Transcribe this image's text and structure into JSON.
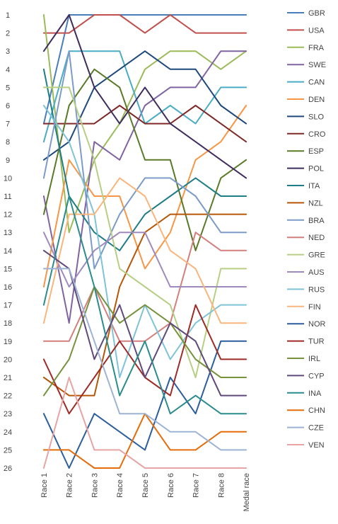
{
  "chart_data": {
    "type": "line",
    "title": "",
    "xlabel": "",
    "ylabel": "",
    "y_reversed": true,
    "ylim": [
      1,
      26
    ],
    "grid": false,
    "legend_position": "right",
    "categories": [
      "Race 1",
      "Race 2",
      "Race 3",
      "Race 4",
      "Race 5",
      "Race 6",
      "Race 7",
      "Race 8",
      "Medal race"
    ],
    "y_ticks": [
      1,
      2,
      3,
      4,
      5,
      6,
      7,
      8,
      9,
      10,
      11,
      12,
      13,
      14,
      15,
      16,
      17,
      18,
      19,
      20,
      21,
      22,
      23,
      24,
      25,
      26
    ],
    "series": [
      {
        "name": "GBR",
        "color": "#4a7ebb",
        "values": [
          7,
          1,
          1,
          1,
          1,
          1,
          1,
          1,
          1
        ]
      },
      {
        "name": "USA",
        "color": "#c0504d",
        "values": [
          2,
          2,
          1,
          1,
          2,
          1,
          2,
          2,
          2
        ]
      },
      {
        "name": "FRA",
        "color": "#9bbb59",
        "values": [
          1,
          13,
          9,
          7,
          4,
          3,
          3,
          4,
          3
        ]
      },
      {
        "name": "SWE",
        "color": "#8064a2",
        "values": [
          11,
          18,
          8,
          9,
          6,
          5,
          5,
          3,
          3
        ]
      },
      {
        "name": "CAN",
        "color": "#4bacc6",
        "values": [
          8,
          3,
          3,
          3,
          7,
          6,
          7,
          5,
          5
        ]
      },
      {
        "name": "DEN",
        "color": "#f79646",
        "values": [
          16,
          9,
          11,
          11,
          15,
          13,
          9,
          8,
          6
        ]
      },
      {
        "name": "SLO",
        "color": "#1f497d",
        "values": [
          9,
          8,
          5,
          4,
          3,
          4,
          4,
          6,
          7
        ]
      },
      {
        "name": "CRO",
        "color": "#7f2a27",
        "values": [
          7,
          7,
          7,
          6,
          7,
          7,
          6,
          7,
          8
        ]
      },
      {
        "name": "ESP",
        "color": "#5b7a28",
        "values": [
          12,
          6,
          4,
          5,
          9,
          9,
          14,
          10,
          9
        ]
      },
      {
        "name": "POL",
        "color": "#3f2d5e",
        "values": [
          3,
          1,
          5,
          7,
          5,
          7,
          8,
          9,
          10
        ]
      },
      {
        "name": "ITA",
        "color": "#1f7d86",
        "values": [
          4,
          11,
          13,
          14,
          12,
          11,
          10,
          11,
          11
        ]
      },
      {
        "name": "NZL",
        "color": "#b65708",
        "values": [
          21,
          22,
          22,
          16,
          13,
          12,
          12,
          12,
          12
        ]
      },
      {
        "name": "BRA",
        "color": "#7d9bc8",
        "values": [
          10,
          3,
          15,
          12,
          10,
          10,
          11,
          13,
          13
        ]
      },
      {
        "name": "NED",
        "color": "#d37f7d",
        "values": [
          19,
          19,
          16,
          19,
          19,
          18,
          13,
          14,
          14
        ]
      },
      {
        "name": "GRE",
        "color": "#b7ce85",
        "values": [
          5,
          5,
          9,
          15,
          16,
          17,
          21,
          15,
          15
        ]
      },
      {
        "name": "AUS",
        "color": "#9f8abd",
        "values": [
          13,
          16,
          14,
          13,
          13,
          16,
          16,
          16,
          16
        ]
      },
      {
        "name": "RUS",
        "color": "#7fc3d6",
        "values": [
          6,
          8,
          12,
          21,
          17,
          20,
          18,
          17,
          17
        ]
      },
      {
        "name": "FIN",
        "color": "#f9b57c",
        "values": [
          18,
          12,
          12,
          10,
          11,
          14,
          15,
          18,
          18
        ]
      },
      {
        "name": "NOR",
        "color": "#2c5e9e",
        "values": [
          23,
          26,
          23,
          24,
          25,
          21,
          23,
          19,
          19
        ]
      },
      {
        "name": "TUR",
        "color": "#9e2b27",
        "values": [
          20,
          23,
          21,
          19,
          21,
          22,
          17,
          20,
          20
        ]
      },
      {
        "name": "IRL",
        "color": "#76923c",
        "values": [
          22,
          20,
          16,
          18,
          17,
          18,
          20,
          21,
          21
        ]
      },
      {
        "name": "CYP",
        "color": "#5f497a",
        "values": [
          14,
          15,
          20,
          17,
          21,
          18,
          19,
          22,
          22
        ]
      },
      {
        "name": "INA",
        "color": "#2a8c8c",
        "values": [
          17,
          11,
          16,
          22,
          19,
          23,
          22,
          23,
          23
        ]
      },
      {
        "name": "CHN",
        "color": "#e46c0a",
        "values": [
          25,
          25,
          26,
          26,
          23,
          25,
          25,
          24,
          24
        ]
      },
      {
        "name": "CZE",
        "color": "#9db3d6",
        "values": [
          15,
          15,
          19,
          23,
          23,
          24,
          24,
          25,
          25
        ]
      },
      {
        "name": "VEN",
        "color": "#e6a5a4",
        "values": [
          26,
          21,
          25,
          25,
          26,
          26,
          26,
          26,
          26
        ]
      }
    ]
  }
}
